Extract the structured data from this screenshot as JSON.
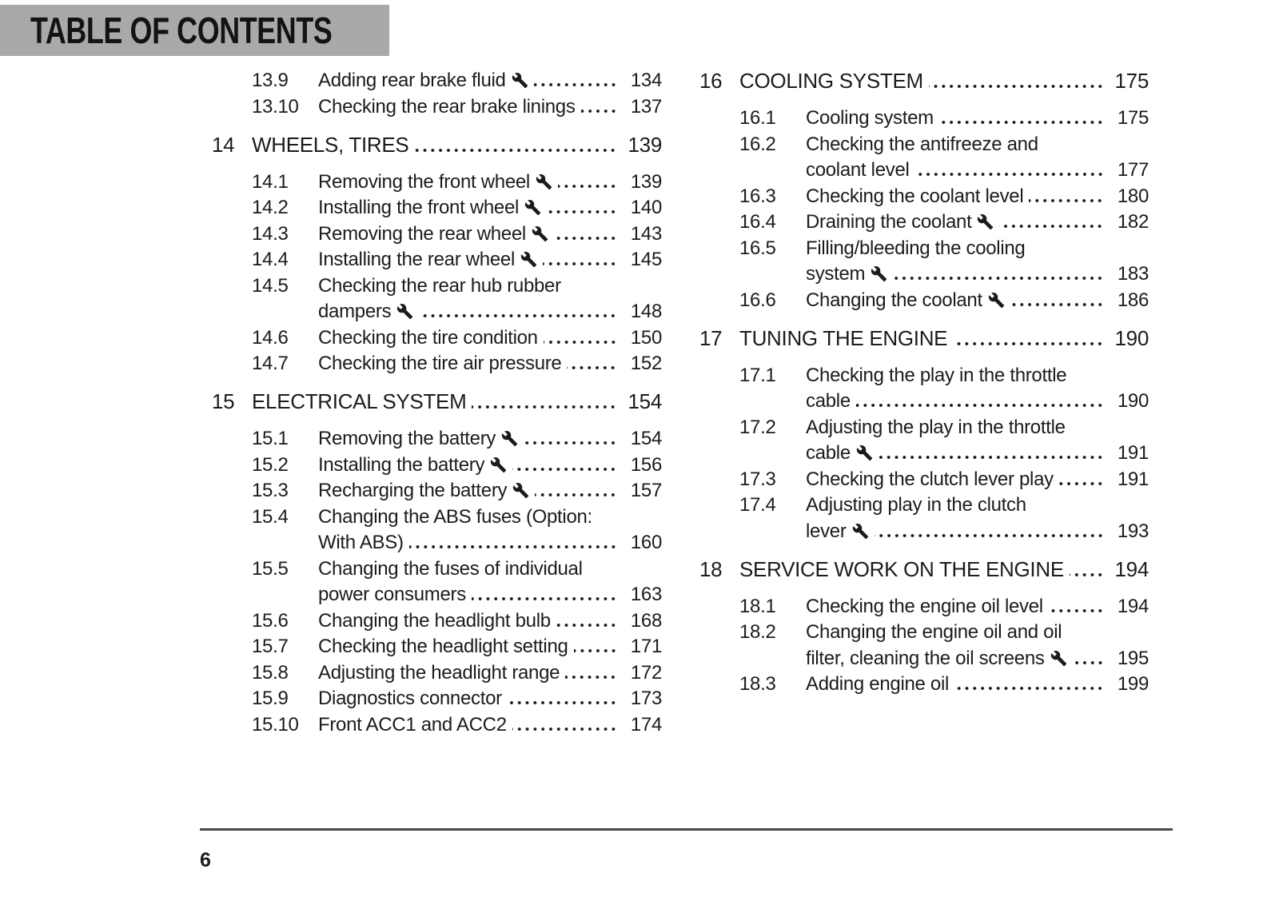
{
  "header": {
    "title": "TABLE OF CONTENTS"
  },
  "footer": {
    "page_number": "6"
  },
  "icons": {
    "service_marker": "wrench-icon"
  },
  "colors": {
    "header_bg": "#a9a9a9",
    "text": "#1d1b1c",
    "rule": "#4a4a4a"
  },
  "columns": [
    {
      "blocks": [
        {
          "type": "items",
          "items": [
            {
              "num": "13.9",
              "lines": [
                "Adding rear brake fluid"
              ],
              "wrench": true,
              "page": "134"
            },
            {
              "num": "13.10",
              "lines": [
                "Checking the rear brake linings"
              ],
              "wrench": false,
              "page": "137"
            }
          ]
        },
        {
          "type": "section",
          "num": "14",
          "title": "WHEELS, TIRES",
          "page": "139",
          "items": [
            {
              "num": "14.1",
              "lines": [
                "Removing the front wheel"
              ],
              "wrench": true,
              "page": "139"
            },
            {
              "num": "14.2",
              "lines": [
                "Installing the front wheel"
              ],
              "wrench": true,
              "page": "140"
            },
            {
              "num": "14.3",
              "lines": [
                "Removing the rear wheel"
              ],
              "wrench": true,
              "page": "143"
            },
            {
              "num": "14.4",
              "lines": [
                "Installing the rear wheel"
              ],
              "wrench": true,
              "page": "145"
            },
            {
              "num": "14.5",
              "lines": [
                "Checking the rear hub rubber",
                "dampers"
              ],
              "wrench": true,
              "page": "148"
            },
            {
              "num": "14.6",
              "lines": [
                "Checking the tire condition"
              ],
              "wrench": false,
              "page": "150"
            },
            {
              "num": "14.7",
              "lines": [
                "Checking the tire air pressure"
              ],
              "wrench": false,
              "page": "152"
            }
          ]
        },
        {
          "type": "section",
          "num": "15",
          "title": "ELECTRICAL SYSTEM",
          "page": "154",
          "items": [
            {
              "num": "15.1",
              "lines": [
                "Removing the battery"
              ],
              "wrench": true,
              "page": "154"
            },
            {
              "num": "15.2",
              "lines": [
                "Installing the battery"
              ],
              "wrench": true,
              "page": "156"
            },
            {
              "num": "15.3",
              "lines": [
                "Recharging the battery"
              ],
              "wrench": true,
              "page": "157"
            },
            {
              "num": "15.4",
              "lines": [
                "Changing the ABS fuses (Option:",
                "With ABS)"
              ],
              "wrench": false,
              "page": "160"
            },
            {
              "num": "15.5",
              "lines": [
                "Changing the fuses of individual",
                "power consumers"
              ],
              "wrench": false,
              "page": "163"
            },
            {
              "num": "15.6",
              "lines": [
                "Changing the headlight bulb"
              ],
              "wrench": false,
              "page": "168"
            },
            {
              "num": "15.7",
              "lines": [
                "Checking the headlight setting"
              ],
              "wrench": false,
              "page": "171"
            },
            {
              "num": "15.8",
              "lines": [
                "Adjusting the headlight range"
              ],
              "wrench": false,
              "page": "172"
            },
            {
              "num": "15.9",
              "lines": [
                "Diagnostics connector"
              ],
              "wrench": false,
              "page": "173"
            },
            {
              "num": "15.10",
              "lines": [
                "Front ACC1 and ACC2"
              ],
              "wrench": false,
              "page": "174"
            }
          ]
        }
      ]
    },
    {
      "blocks": [
        {
          "type": "section",
          "num": "16",
          "title": "COOLING SYSTEM",
          "page": "175",
          "items": [
            {
              "num": "16.1",
              "lines": [
                "Cooling system"
              ],
              "wrench": false,
              "page": "175"
            },
            {
              "num": "16.2",
              "lines": [
                "Checking the antifreeze and",
                "coolant level"
              ],
              "wrench": false,
              "page": "177"
            },
            {
              "num": "16.3",
              "lines": [
                "Checking the coolant level"
              ],
              "wrench": false,
              "page": "180"
            },
            {
              "num": "16.4",
              "lines": [
                "Draining the coolant"
              ],
              "wrench": true,
              "page": "182"
            },
            {
              "num": "16.5",
              "lines": [
                "Filling/bleeding the cooling",
                "system"
              ],
              "wrench": true,
              "page": "183"
            },
            {
              "num": "16.6",
              "lines": [
                "Changing the coolant"
              ],
              "wrench": true,
              "page": "186"
            }
          ]
        },
        {
          "type": "section",
          "num": "17",
          "title": "TUNING THE ENGINE",
          "page": "190",
          "items": [
            {
              "num": "17.1",
              "lines": [
                "Checking the play in the throttle",
                "cable"
              ],
              "wrench": false,
              "page": "190"
            },
            {
              "num": "17.2",
              "lines": [
                "Adjusting the play in the throttle",
                "cable"
              ],
              "wrench": true,
              "page": "191"
            },
            {
              "num": "17.3",
              "lines": [
                "Checking the clutch lever play"
              ],
              "wrench": false,
              "page": "191"
            },
            {
              "num": "17.4",
              "lines": [
                "Adjusting play in the clutch",
                "lever"
              ],
              "wrench": true,
              "page": "193"
            }
          ]
        },
        {
          "type": "section",
          "num": "18",
          "title": "SERVICE WORK ON THE ENGINE",
          "page": "194",
          "items": [
            {
              "num": "18.1",
              "lines": [
                "Checking the engine oil level"
              ],
              "wrench": false,
              "page": "194"
            },
            {
              "num": "18.2",
              "lines": [
                "Changing the engine oil and oil",
                "filter, cleaning the oil screens"
              ],
              "wrench": true,
              "page": "195"
            },
            {
              "num": "18.3",
              "lines": [
                "Adding engine oil"
              ],
              "wrench": false,
              "page": "199"
            }
          ]
        }
      ]
    }
  ]
}
